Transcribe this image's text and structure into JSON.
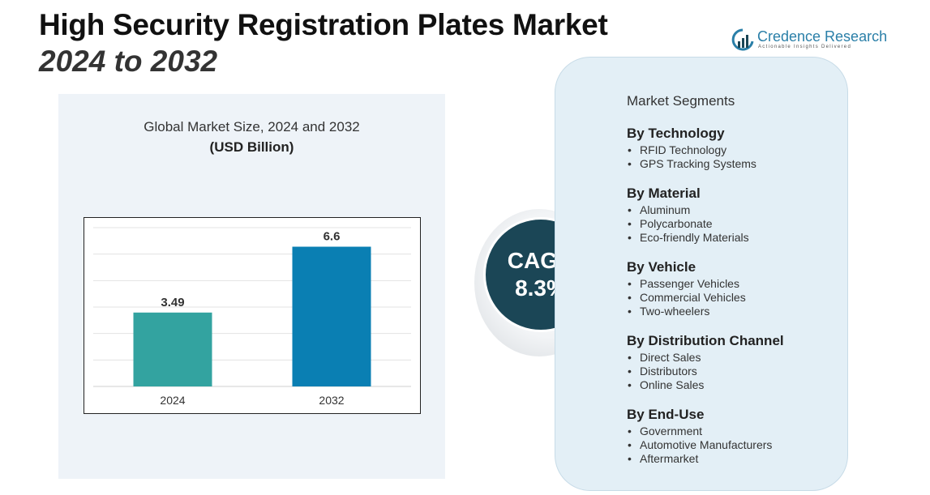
{
  "header": {
    "title": "High Security Registration Plates Market",
    "subtitle": "2024 to 2032"
  },
  "logo": {
    "name": "Credence Research",
    "tagline": "Actionable Insights Delivered",
    "icon": "chart-growth-icon"
  },
  "chart_data": {
    "type": "bar",
    "title": "Global Market Size, 2024 and 2032",
    "unit_label": "(USD Billion)",
    "categories": [
      "2024",
      "2032"
    ],
    "values": [
      3.49,
      6.6
    ],
    "value_labels": [
      "3.49",
      "6.6"
    ],
    "colors": [
      "#33a3a0",
      "#0a7fb3"
    ],
    "ylim": [
      0,
      7.5
    ],
    "grid": true,
    "xlabel": "",
    "ylabel": ""
  },
  "cagr": {
    "label": "CAGR",
    "value": "8.3%"
  },
  "segments": {
    "heading": "Market Segments",
    "groups": [
      {
        "title": "By Technology",
        "items": [
          "RFID Technology",
          "GPS Tracking Systems"
        ]
      },
      {
        "title": "By Material",
        "items": [
          "Aluminum",
          "Polycarbonate",
          "Eco-friendly Materials"
        ]
      },
      {
        "title": "By Vehicle",
        "items": [
          "Passenger Vehicles",
          "Commercial Vehicles",
          "Two-wheelers"
        ]
      },
      {
        "title": "By Distribution Channel",
        "items": [
          "Direct Sales",
          "Distributors",
          "Online Sales"
        ]
      },
      {
        "title": "By End-Use",
        "items": [
          "Government",
          "Automotive Manufacturers",
          "Aftermarket"
        ]
      }
    ]
  }
}
